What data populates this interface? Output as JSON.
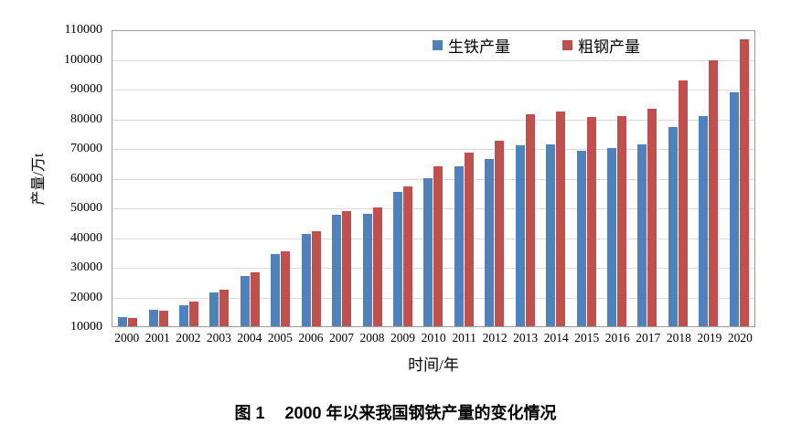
{
  "figure": {
    "caption_prefix": "图 1",
    "caption_text": "2000 年以来我国钢铁产量的变化情况"
  },
  "chart_data": {
    "type": "bar",
    "title": "",
    "xlabel": "时间/年",
    "ylabel": "产量/万t",
    "categories": [
      "2000",
      "2001",
      "2002",
      "2003",
      "2004",
      "2005",
      "2006",
      "2007",
      "2008",
      "2009",
      "2010",
      "2011",
      "2012",
      "2013",
      "2014",
      "2015",
      "2016",
      "2017",
      "2018",
      "2019",
      "2020"
    ],
    "series": [
      {
        "name": "生铁产量",
        "color": "#4F81BD",
        "values": [
          13100,
          15600,
          17100,
          21400,
          26800,
          34400,
          41200,
          47600,
          47800,
          55100,
          59700,
          64000,
          66400,
          71000,
          71200,
          69100,
          70000,
          71100,
          77100,
          80900,
          88800
        ]
      },
      {
        "name": "粗钢产量",
        "color": "#C0504D",
        "values": [
          12900,
          15200,
          18200,
          22200,
          28300,
          35300,
          42000,
          48900,
          50100,
          57200,
          63700,
          68500,
          72400,
          81300,
          82200,
          80400,
          80800,
          83200,
          92800,
          99600,
          106500
        ]
      }
    ],
    "ylim": [
      10000,
      110000
    ],
    "ytick_step": 10000,
    "bar_baseline": 10000,
    "grid": true,
    "legend_position": "top-center-inside"
  },
  "colors": {
    "pig_iron_blue": "#4F81BD",
    "crude_steel_red": "#C0504D",
    "gridline": "#DCDCDC",
    "plot_border": "#9C9C9C",
    "text": "#000000"
  }
}
